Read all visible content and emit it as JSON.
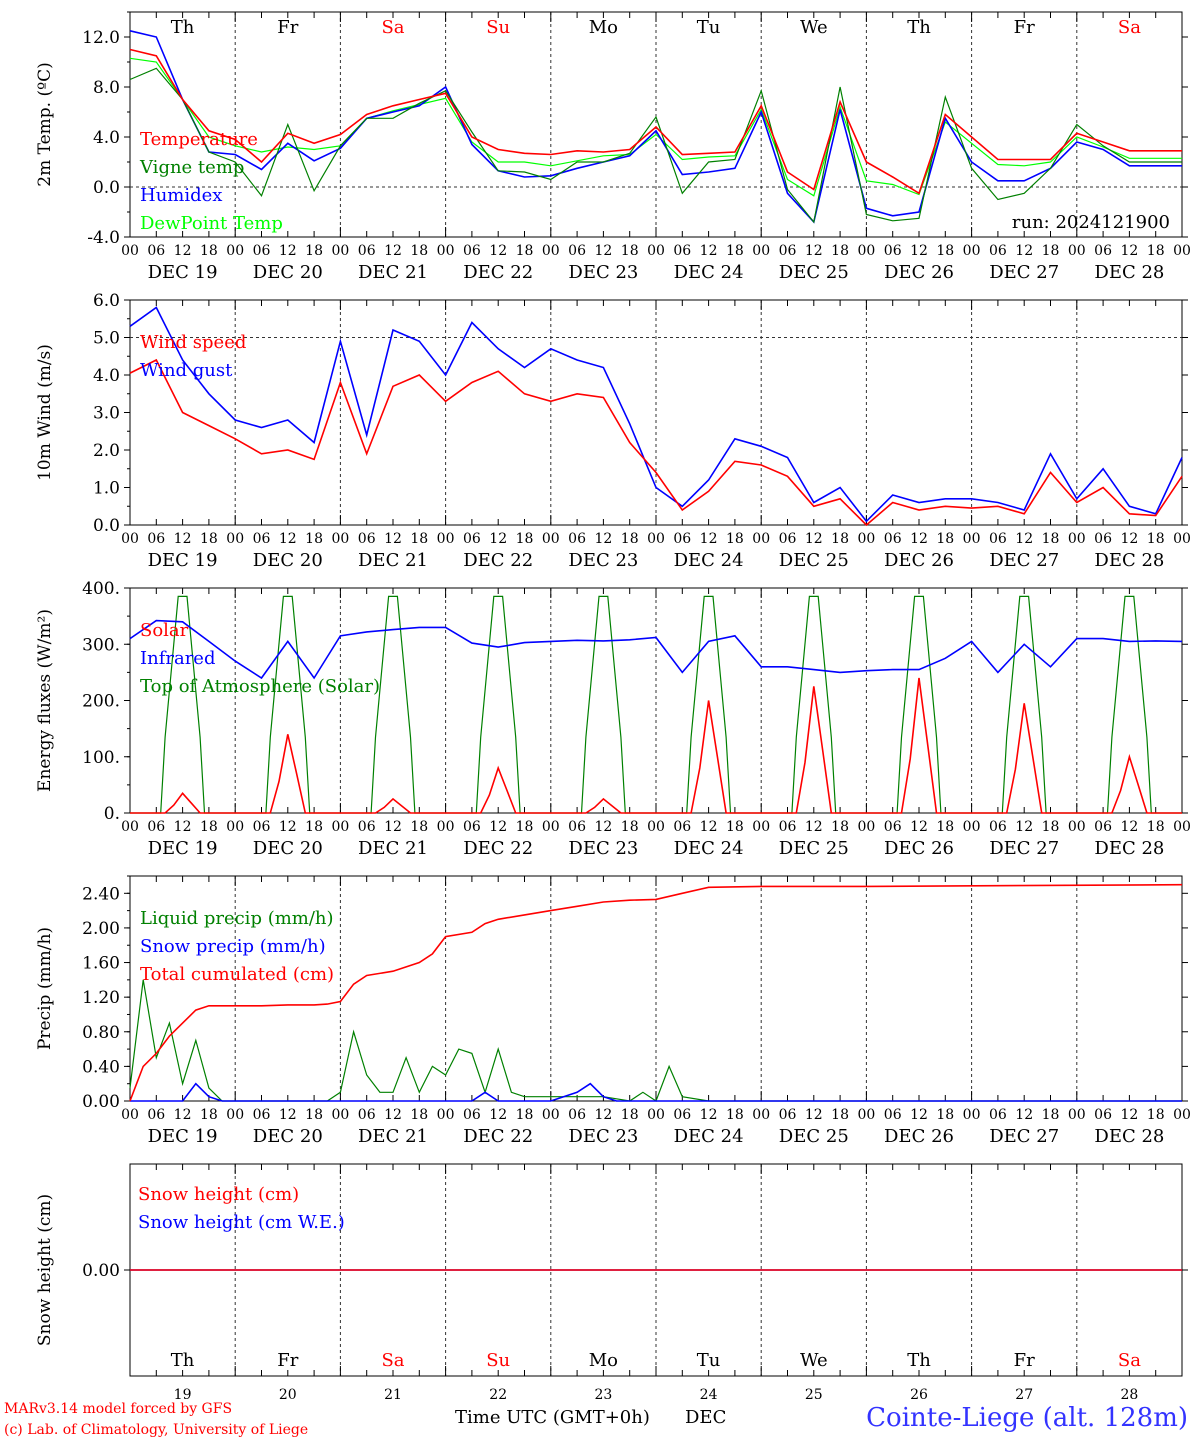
{
  "run_label": "run: 2024121900",
  "footer": {
    "credit1": "MARv3.14 model forced by GFS",
    "credit2": "(c) Lab. of Climatology, University of Liege",
    "xlabel": "Time UTC (GMT+0h)",
    "month": "DEC",
    "station": "Cointe-Liege (alt. 128m)"
  },
  "colors": {
    "red": "#ff0000",
    "green": "#008000",
    "blue": "#0000ff",
    "lime": "#00ff00",
    "weekend": "#ff0000",
    "weekday": "#000000"
  },
  "days": [
    {
      "abbr": "Th",
      "num": "19",
      "date": "DEC 19",
      "weekend": false
    },
    {
      "abbr": "Fr",
      "num": "20",
      "date": "DEC 20",
      "weekend": false
    },
    {
      "abbr": "Sa",
      "num": "21",
      "date": "DEC 21",
      "weekend": true
    },
    {
      "abbr": "Su",
      "num": "22",
      "date": "DEC 22",
      "weekend": true
    },
    {
      "abbr": "Mo",
      "num": "23",
      "date": "DEC 23",
      "weekend": false
    },
    {
      "abbr": "Tu",
      "num": "24",
      "date": "DEC 24",
      "weekend": false
    },
    {
      "abbr": "We",
      "num": "25",
      "date": "DEC 25",
      "weekend": false
    },
    {
      "abbr": "Th",
      "num": "26",
      "date": "DEC 26",
      "weekend": false
    },
    {
      "abbr": "Fr",
      "num": "27",
      "date": "DEC 27",
      "weekend": false
    },
    {
      "abbr": "Sa",
      "num": "28",
      "date": "DEC 28",
      "weekend": true
    }
  ],
  "hour_ticks": [
    "00",
    "06",
    "12",
    "18"
  ],
  "chart_data": [
    {
      "type": "line",
      "ylabel": "2m Temp. (ºC)",
      "ylim": [
        -4,
        14
      ],
      "yticks": [
        "-4.0",
        "0.0",
        "4.0",
        "8.0",
        "12.0"
      ],
      "ytick_values": [
        -4,
        0,
        4,
        8,
        12
      ],
      "dashed_levels": [
        0
      ],
      "x_hours": [
        0,
        6,
        12,
        18,
        24,
        30,
        36,
        42,
        48,
        54,
        60,
        66,
        72,
        78,
        84,
        90,
        96,
        102,
        108,
        114,
        120,
        126,
        132,
        138,
        144,
        150,
        156,
        162,
        168,
        174,
        180,
        186,
        192,
        198,
        204,
        210,
        216,
        222,
        228,
        234,
        240
      ],
      "series": [
        {
          "name": "Temperature",
          "color": "#ff0000",
          "values": [
            11.0,
            10.5,
            7.0,
            4.5,
            3.8,
            2.0,
            4.3,
            3.5,
            4.2,
            5.8,
            6.5,
            7.0,
            7.5,
            4.0,
            3.0,
            2.7,
            2.6,
            2.9,
            2.8,
            3.0,
            4.8,
            2.6,
            2.7,
            2.8,
            6.5,
            1.2,
            -0.2,
            6.8,
            2.0,
            0.8,
            -0.5,
            5.8,
            4.0,
            2.2,
            2.2,
            2.2,
            4.3,
            3.6,
            2.9,
            2.9,
            2.9
          ]
        },
        {
          "name": "Vigne temp",
          "color": "#008000",
          "values": [
            8.6,
            9.5,
            7.0,
            2.8,
            2.0,
            -0.7,
            5.0,
            -0.3,
            3.3,
            5.5,
            5.5,
            6.7,
            7.7,
            4.4,
            1.3,
            1.2,
            0.6,
            2.0,
            2.0,
            2.7,
            5.6,
            -0.5,
            2.0,
            2.2,
            7.7,
            -0.2,
            -2.8,
            8.0,
            -2.2,
            -2.7,
            -2.5,
            7.2,
            1.5,
            -1.0,
            -0.5,
            1.5,
            5.0,
            3.3,
            2.0,
            2.0,
            2.0
          ]
        },
        {
          "name": "Humidex",
          "color": "#0000ff",
          "values": [
            12.5,
            12.0,
            7.0,
            2.8,
            2.6,
            1.4,
            3.5,
            2.1,
            3.1,
            5.5,
            6.0,
            6.5,
            8.0,
            3.4,
            1.3,
            0.8,
            0.9,
            1.5,
            2.0,
            2.5,
            4.5,
            1.0,
            1.2,
            1.5,
            6.0,
            -0.5,
            -2.8,
            6.2,
            -1.7,
            -2.3,
            -2.0,
            5.5,
            2.0,
            0.5,
            0.5,
            1.5,
            3.6,
            3.0,
            1.7,
            1.7,
            1.7
          ]
        },
        {
          "name": "DewPoint Temp",
          "color": "#00ff00",
          "values": [
            10.3,
            10.0,
            7.0,
            4.0,
            3.3,
            2.8,
            3.2,
            3.0,
            3.3,
            5.5,
            6.1,
            6.6,
            7.1,
            3.6,
            2.0,
            2.0,
            1.7,
            2.1,
            2.5,
            2.6,
            4.2,
            2.2,
            2.4,
            2.5,
            6.2,
            0.6,
            -0.7,
            6.4,
            0.5,
            0.2,
            -0.6,
            5.2,
            3.5,
            1.8,
            1.7,
            2.0,
            4.0,
            3.2,
            2.3,
            2.3,
            2.3
          ]
        }
      ]
    },
    {
      "type": "line",
      "ylabel": "10m Wind (m/s)",
      "ylim": [
        0,
        6
      ],
      "yticks": [
        "0.0",
        "1.0",
        "2.0",
        "3.0",
        "4.0",
        "5.0",
        "6.0"
      ],
      "ytick_values": [
        0,
        1,
        2,
        3,
        4,
        5,
        6
      ],
      "dashed_levels": [
        5
      ],
      "x_hours": [
        0,
        6,
        12,
        18,
        24,
        30,
        36,
        42,
        48,
        54,
        60,
        66,
        72,
        78,
        84,
        90,
        96,
        102,
        108,
        114,
        120,
        126,
        132,
        138,
        144,
        150,
        156,
        162,
        168,
        174,
        180,
        186,
        192,
        198,
        204,
        210,
        216,
        222,
        228,
        234,
        240
      ],
      "series": [
        {
          "name": "Wind speed",
          "color": "#ff0000",
          "values": [
            4.05,
            4.4,
            3.0,
            2.65,
            2.3,
            1.9,
            2.0,
            1.75,
            3.8,
            1.9,
            3.7,
            4.0,
            3.3,
            3.8,
            4.1,
            3.5,
            3.3,
            3.5,
            3.4,
            2.2,
            1.4,
            0.4,
            0.9,
            1.7,
            1.6,
            1.3,
            0.5,
            0.7,
            0.0,
            0.6,
            0.4,
            0.5,
            0.45,
            0.5,
            0.3,
            1.4,
            0.6,
            1.0,
            0.3,
            0.25,
            1.3
          ]
        },
        {
          "name": "Wind gust",
          "color": "#0000ff",
          "values": [
            5.3,
            5.8,
            4.4,
            3.5,
            2.8,
            2.6,
            2.8,
            2.2,
            4.9,
            2.4,
            5.2,
            4.9,
            4.0,
            5.4,
            4.7,
            4.2,
            4.7,
            4.4,
            4.2,
            2.7,
            1.0,
            0.5,
            1.2,
            2.3,
            2.1,
            1.8,
            0.6,
            1.0,
            0.1,
            0.8,
            0.6,
            0.7,
            0.7,
            0.6,
            0.4,
            1.9,
            0.7,
            1.5,
            0.5,
            0.3,
            1.8
          ]
        }
      ]
    },
    {
      "type": "line",
      "ylabel": "Energy fluxes (W/m²)",
      "ylim": [
        0,
        400
      ],
      "yticks": [
        "0.",
        "100.",
        "200.",
        "300.",
        "400."
      ],
      "ytick_values": [
        0,
        100,
        200,
        300,
        400
      ],
      "dashed_levels": [],
      "solar_peaks": [
        35,
        140,
        25,
        80,
        25,
        200,
        225,
        240,
        195,
        100
      ],
      "toa_peak": 385,
      "infrared": {
        "name": "Infrared",
        "color": "#0000ff",
        "x_hours": [
          0,
          6,
          12,
          18,
          24,
          30,
          36,
          42,
          48,
          54,
          60,
          66,
          72,
          78,
          84,
          90,
          96,
          102,
          108,
          114,
          120,
          126,
          132,
          138,
          144,
          150,
          156,
          162,
          168,
          174,
          180,
          186,
          192,
          198,
          204,
          210,
          216,
          222,
          228,
          234,
          240
        ],
        "values": [
          310,
          342,
          340,
          305,
          270,
          240,
          305,
          240,
          315,
          322,
          326,
          330,
          330,
          302,
          295,
          303,
          305,
          307,
          306,
          308,
          312,
          250,
          305,
          315,
          260,
          260,
          255,
          250,
          253,
          255,
          255,
          275,
          305,
          250,
          300,
          260,
          310,
          310,
          305,
          306,
          305
        ]
      },
      "series": [
        {
          "name": "Solar",
          "color": "#ff0000"
        },
        {
          "name": "Infrared",
          "color": "#0000ff"
        },
        {
          "name": "Top of Atmosphere (Solar)",
          "color": "#008000"
        }
      ]
    },
    {
      "type": "line",
      "ylabel": "Precip (mm/h)",
      "ylim": [
        0,
        2.6
      ],
      "yticks": [
        "0.00",
        "0.40",
        "0.80",
        "1.20",
        "1.60",
        "2.00",
        "2.40"
      ],
      "ytick_values": [
        0,
        0.4,
        0.8,
        1.2,
        1.6,
        2.0,
        2.4
      ],
      "dashed_levels": [],
      "series": [
        {
          "name": "Liquid precip (mm/h)",
          "color": "#008000",
          "x_hours": [
            0,
            3,
            6,
            9,
            12,
            15,
            18,
            21,
            24,
            30,
            36,
            42,
            45,
            48,
            51,
            54,
            57,
            60,
            63,
            66,
            69,
            72,
            75,
            78,
            81,
            84,
            87,
            90,
            96,
            102,
            108,
            114,
            117,
            120,
            123,
            126,
            132,
            144,
            240
          ],
          "values": [
            0.15,
            1.4,
            0.5,
            0.9,
            0.2,
            0.7,
            0.15,
            0.0,
            0.0,
            0.0,
            0.0,
            0.0,
            0.0,
            0.1,
            0.8,
            0.3,
            0.1,
            0.1,
            0.5,
            0.1,
            0.4,
            0.3,
            0.6,
            0.55,
            0.1,
            0.6,
            0.1,
            0.05,
            0.05,
            0.05,
            0.05,
            0.0,
            0.1,
            0.0,
            0.4,
            0.05,
            0.0,
            0.0,
            0.0
          ]
        },
        {
          "name": "Snow precip (mm/h)",
          "color": "#0000ff",
          "x_hours": [
            0,
            12,
            15,
            18,
            21,
            24,
            60,
            78,
            81,
            84,
            96,
            102,
            105,
            108,
            111,
            120,
            240
          ],
          "values": [
            0.0,
            0.0,
            0.2,
            0.05,
            0.0,
            0.0,
            0.0,
            0.0,
            0.1,
            0.0,
            0.0,
            0.1,
            0.2,
            0.05,
            0.0,
            0.0,
            0.0
          ]
        },
        {
          "name": "Total cumulated (cm)",
          "color": "#ff0000",
          "x_hours": [
            0,
            3,
            6,
            9,
            12,
            15,
            18,
            21,
            24,
            30,
            36,
            42,
            45,
            48,
            51,
            54,
            60,
            66,
            69,
            72,
            78,
            81,
            84,
            90,
            96,
            102,
            108,
            114,
            120,
            126,
            132,
            144,
            168,
            240
          ],
          "values": [
            0.0,
            0.4,
            0.55,
            0.75,
            0.9,
            1.05,
            1.1,
            1.1,
            1.1,
            1.1,
            1.11,
            1.11,
            1.12,
            1.15,
            1.35,
            1.45,
            1.5,
            1.6,
            1.7,
            1.9,
            1.95,
            2.05,
            2.1,
            2.15,
            2.2,
            2.25,
            2.3,
            2.32,
            2.33,
            2.4,
            2.47,
            2.48,
            2.48,
            2.5
          ]
        }
      ]
    },
    {
      "type": "line",
      "ylabel": "Snow height (cm)",
      "ylim": [
        -1,
        1
      ],
      "yticks": [
        "0.00"
      ],
      "ytick_values": [
        0
      ],
      "dashed_levels": [],
      "series": [
        {
          "name": "Snow height (cm)",
          "color": "#ff0000",
          "x_hours": [
            0,
            240
          ],
          "values": [
            0,
            0
          ]
        },
        {
          "name": "Snow height (cm W.E.)",
          "color": "#0000ff",
          "x_hours": [
            0,
            240
          ],
          "values": [
            0,
            0
          ]
        }
      ]
    }
  ]
}
